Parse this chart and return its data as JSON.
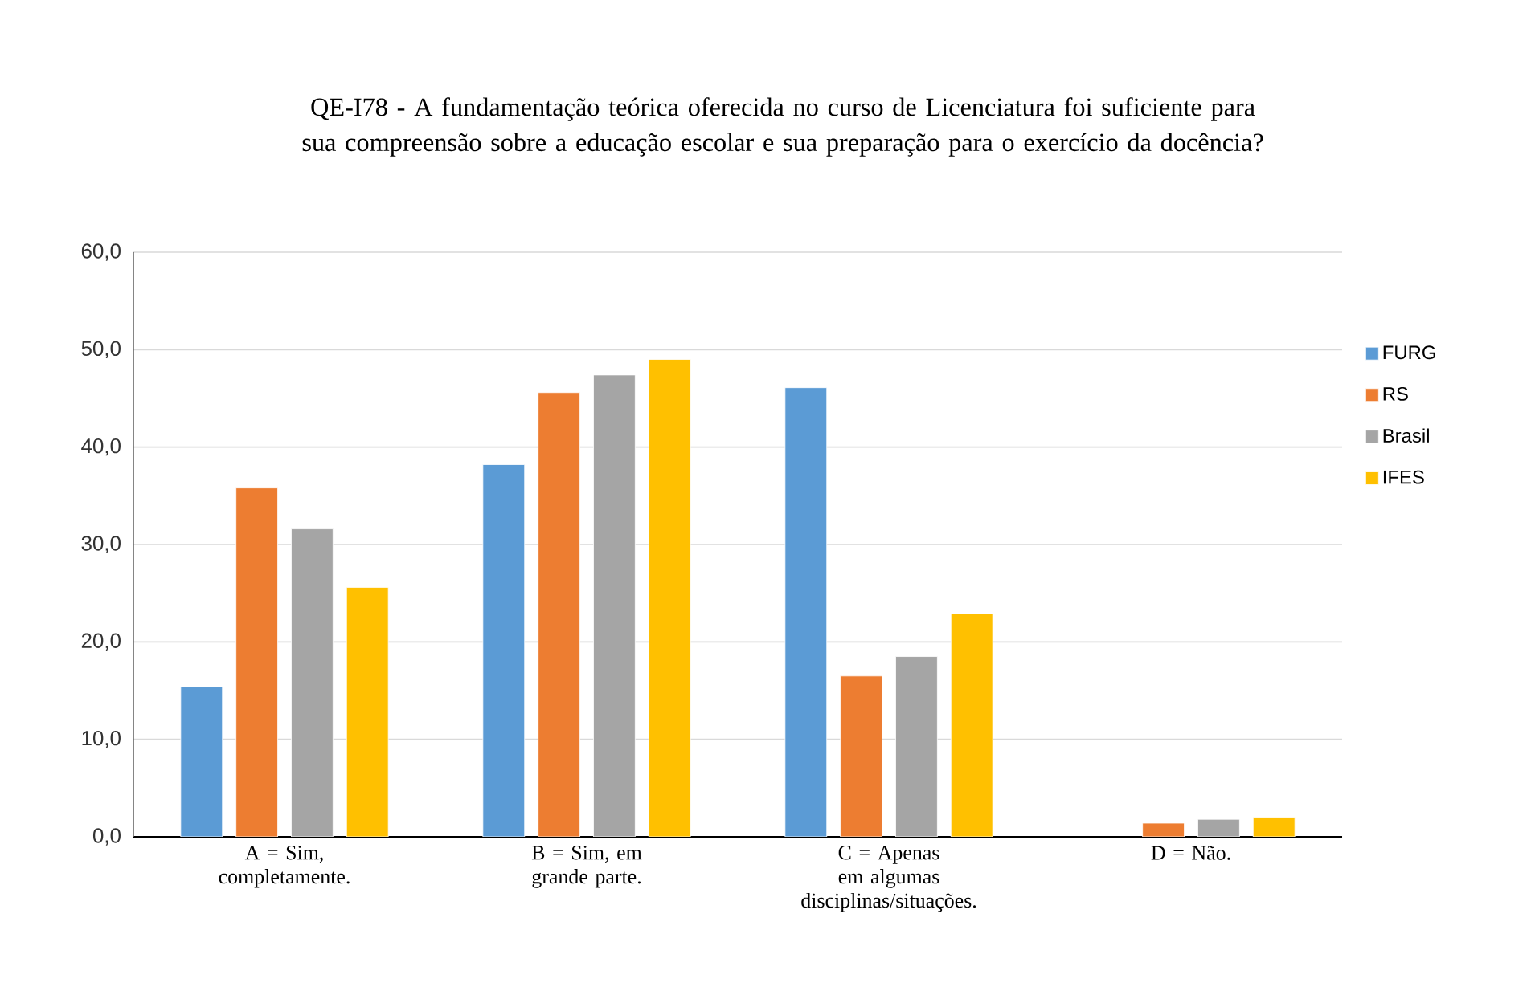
{
  "chart_data": {
    "type": "bar",
    "title": "QE-I78 - A fundamentação teórica oferecida no curso de Licenciatura foi suficiente para sua compreensão sobre a educação escolar e sua preparação para o exercício da docência?",
    "categories": [
      "A = Sim, completamente.",
      "B = Sim, em grande parte.",
      "C = Apenas em algumas disciplinas/situações.",
      "D = Não."
    ],
    "series": [
      {
        "name": "FURG",
        "color": "#5b9bd5",
        "values": [
          15.4,
          38.2,
          46.1,
          null
        ]
      },
      {
        "name": "RS",
        "color": "#ed7d31",
        "values": [
          35.8,
          45.6,
          16.5,
          1.4
        ]
      },
      {
        "name": "Brasil",
        "color": "#a5a5a5",
        "values": [
          31.6,
          47.4,
          18.5,
          1.8
        ]
      },
      {
        "name": "IFES",
        "color": "#ffc000",
        "values": [
          25.6,
          49.0,
          22.9,
          2.0
        ]
      }
    ],
    "ylim": [
      0,
      60
    ],
    "yticks": [
      {
        "value": 0,
        "label": "0,0"
      },
      {
        "value": 10,
        "label": "10,0"
      },
      {
        "value": 20,
        "label": "20,0"
      },
      {
        "value": 30,
        "label": "30,0"
      },
      {
        "value": 40,
        "label": "40,0"
      },
      {
        "value": 50,
        "label": "50,0"
      },
      {
        "value": 60,
        "label": "60,0"
      }
    ],
    "grid": "y",
    "legend": "right"
  }
}
